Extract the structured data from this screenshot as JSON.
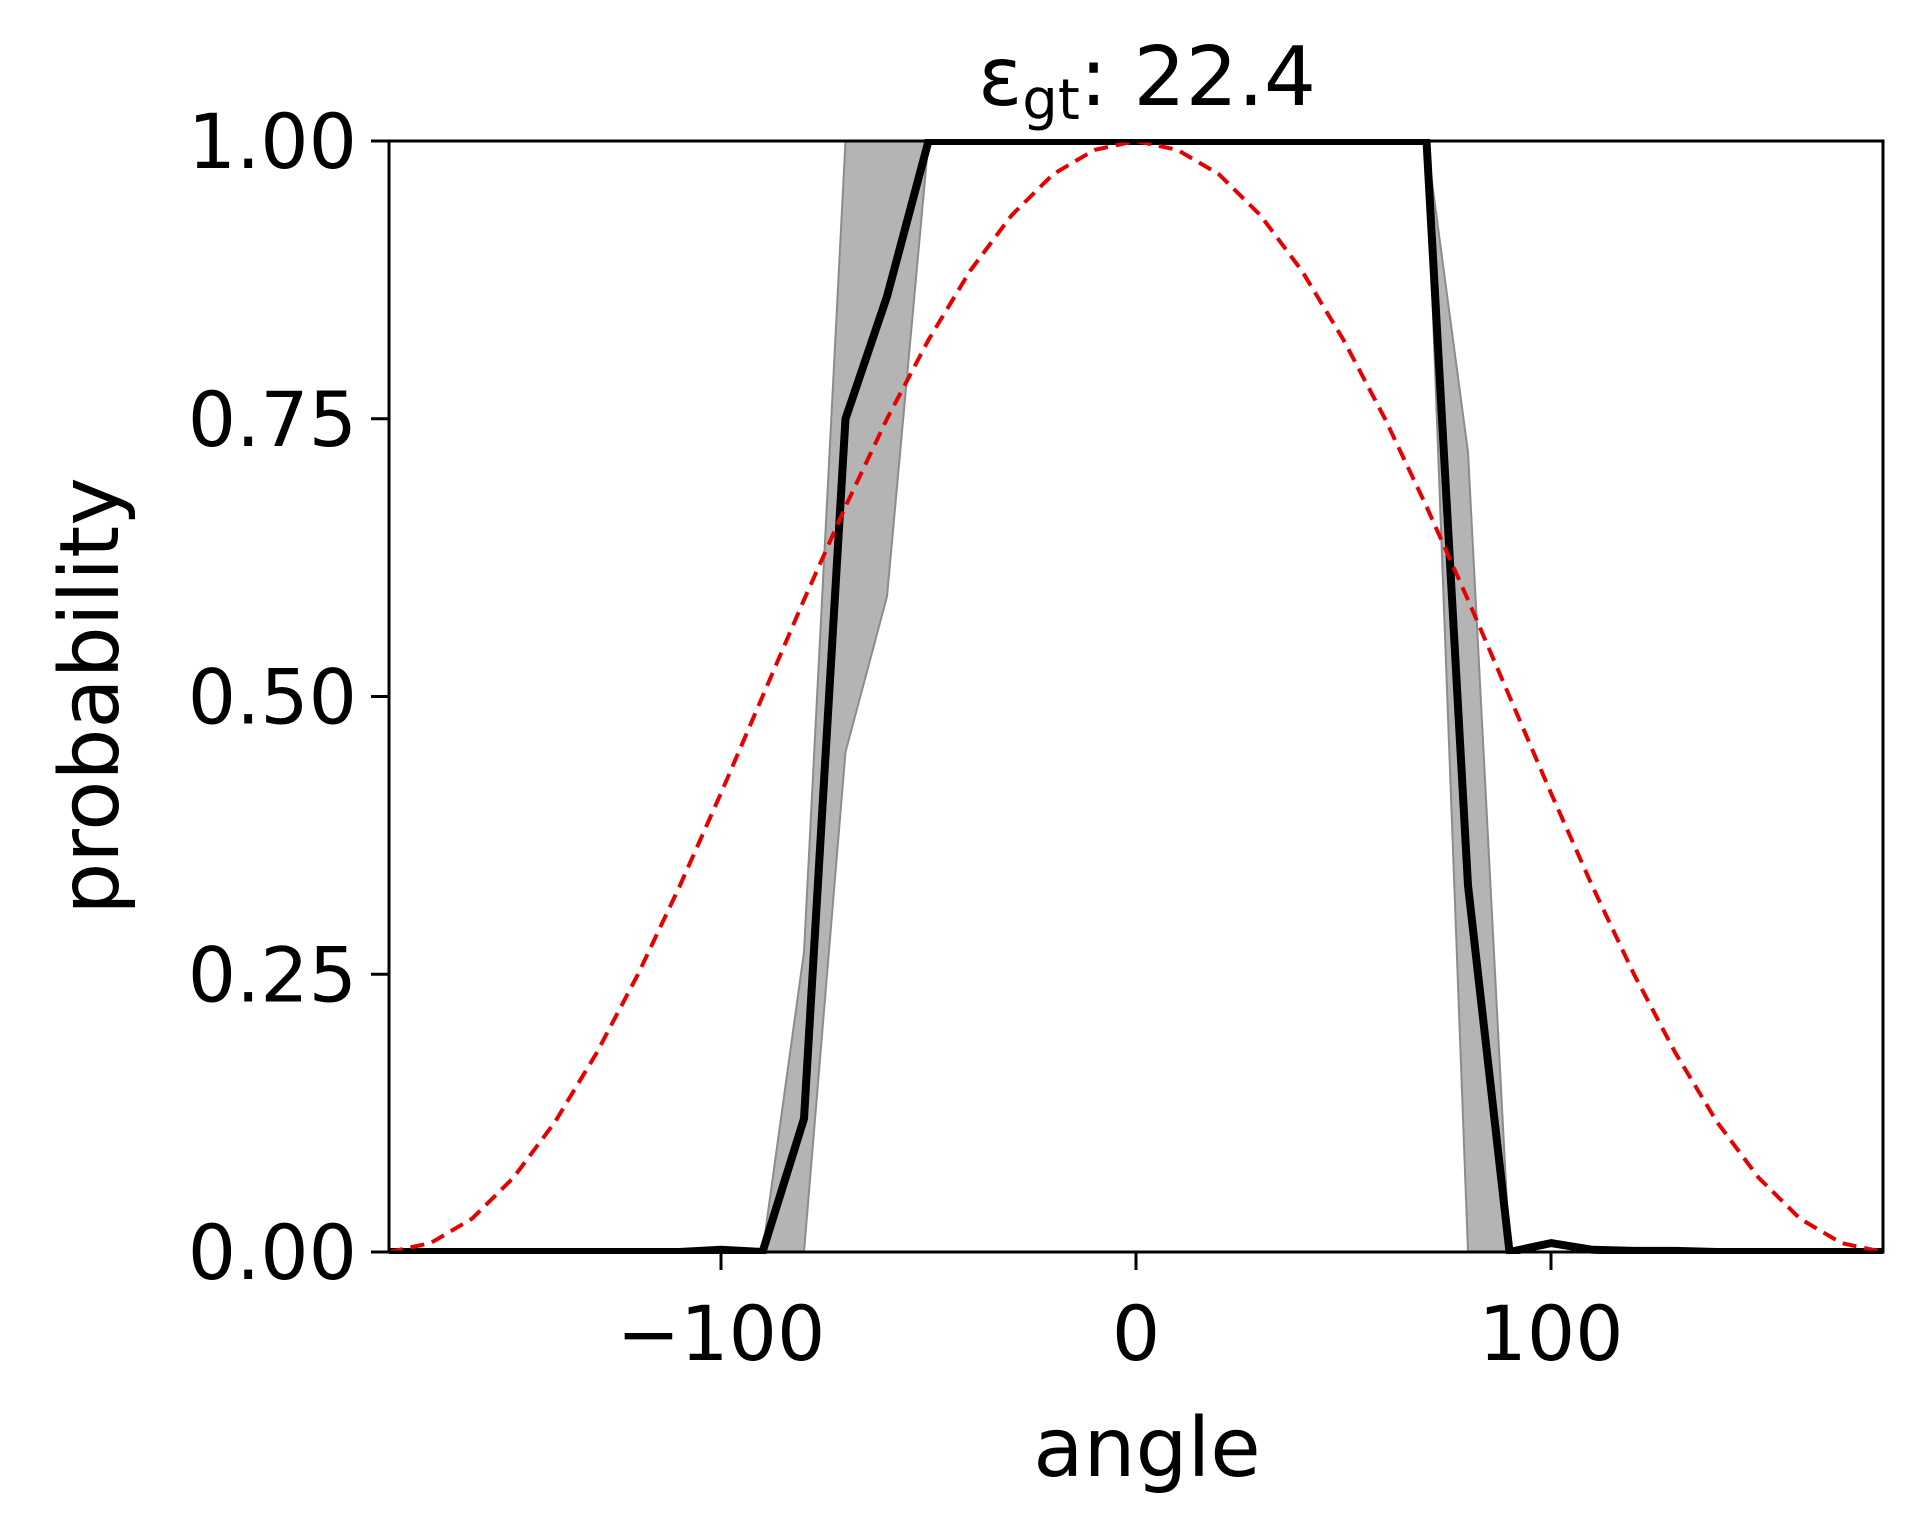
{
  "chart_data": {
    "type": "line",
    "title_symbol": "ε",
    "title_subscript": "gt",
    "title_rest": ": 22.4",
    "xlabel": "angle",
    "ylabel": "probability",
    "xlim": [
      -180,
      180
    ],
    "ylim": [
      0,
      1
    ],
    "x_ticks": [
      -100,
      0,
      100
    ],
    "x_tick_labels": [
      "−100",
      "0",
      "100"
    ],
    "y_ticks": [
      0,
      0.25,
      0.5,
      0.75,
      1.0
    ],
    "y_tick_labels": [
      "0.00",
      "0.25",
      "0.50",
      "0.75",
      "1.00"
    ],
    "grid": false,
    "colors": {
      "line": "#000000",
      "band": "#b4b4b4",
      "reference": "#e60000"
    },
    "series": [
      {
        "style": "solid",
        "x": [
          -180,
          -170,
          -160,
          -150,
          -140,
          -130,
          -120,
          -110,
          -100,
          -90,
          -80,
          -70,
          -60,
          -50,
          -40,
          -30,
          -20,
          -10,
          0,
          10,
          20,
          30,
          40,
          50,
          60,
          70,
          80,
          90,
          100,
          110,
          120,
          130,
          140,
          150,
          160,
          170,
          180
        ],
        "y": [
          0,
          0,
          0,
          0,
          0,
          0,
          0,
          0,
          0.002,
          0.0,
          0.12,
          0.75,
          0.86,
          1.0,
          1.0,
          1.0,
          1.0,
          1.0,
          1.0,
          1.0,
          1.0,
          1.0,
          1.0,
          1.0,
          1.0,
          1.0,
          0.33,
          0.0,
          0.008,
          0.002,
          0.001,
          0.001,
          0.0,
          0.0,
          0.0,
          0.0,
          0.0
        ]
      },
      {
        "style": "dashed",
        "x": [
          -180,
          -170,
          -160,
          -150,
          -140,
          -130,
          -120,
          -110,
          -100,
          -90,
          -80,
          -70,
          -60,
          -50,
          -40,
          -30,
          -20,
          -10,
          0,
          10,
          20,
          30,
          40,
          50,
          60,
          70,
          80,
          90,
          100,
          110,
          120,
          130,
          140,
          150,
          160,
          170,
          180
        ],
        "y": [
          0.0,
          0.008,
          0.03,
          0.067,
          0.117,
          0.179,
          0.25,
          0.329,
          0.413,
          0.5,
          0.587,
          0.671,
          0.75,
          0.821,
          0.883,
          0.933,
          0.97,
          0.992,
          1.0,
          0.992,
          0.97,
          0.933,
          0.883,
          0.821,
          0.75,
          0.671,
          0.587,
          0.5,
          0.413,
          0.329,
          0.25,
          0.179,
          0.117,
          0.067,
          0.03,
          0.008,
          0.0
        ]
      }
    ],
    "band": {
      "x": [
        -90,
        -80,
        -70,
        -60,
        -50,
        70,
        80,
        90
      ],
      "lower": [
        0.0,
        0.0,
        0.45,
        0.59,
        1.0,
        1.0,
        0.0,
        0.0
      ],
      "upper": [
        0.0,
        0.27,
        1.0,
        1.0,
        1.0,
        1.0,
        0.72,
        0.0
      ]
    }
  }
}
